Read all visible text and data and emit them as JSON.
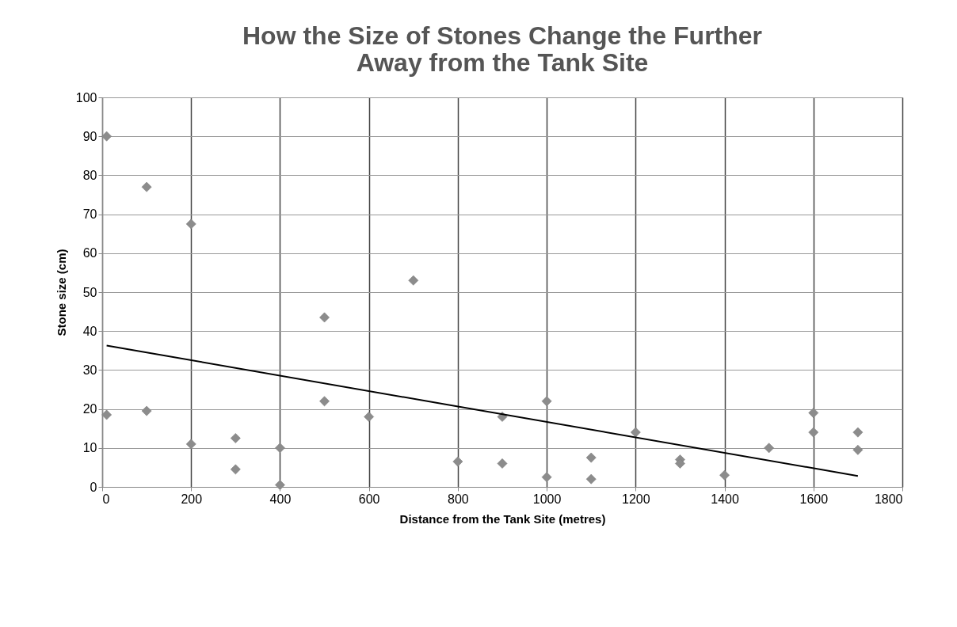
{
  "chart_data": {
    "type": "scatter",
    "title": "How the Size of Stones Change the Further Away from the Tank Site",
    "xlabel": "Distance from the Tank Site (metres)",
    "ylabel": "Stone size (cm)",
    "xlim": [
      0,
      1800
    ],
    "xticks": [
      0,
      200,
      400,
      600,
      800,
      1000,
      1200,
      1400,
      1600,
      1800
    ],
    "ylim": [
      0,
      100
    ],
    "yticks": [
      0,
      10,
      20,
      30,
      40,
      50,
      60,
      70,
      80,
      90,
      100
    ],
    "grid": true,
    "marker": "diamond",
    "series": [
      {
        "color": "#8c8c8c",
        "x": [
          10,
          10,
          100,
          100,
          200,
          200,
          300,
          300,
          400,
          400,
          500,
          500,
          600,
          700,
          800,
          900,
          900,
          1000,
          1000,
          1100,
          1100,
          1200,
          1300,
          1300,
          1400,
          1500,
          1600,
          1600,
          1700,
          1700
        ],
        "values": [
          90,
          18.5,
          77,
          19.5,
          67.5,
          11,
          12.5,
          4.5,
          10,
          0.5,
          43.5,
          22,
          18,
          53,
          6.5,
          18,
          6,
          22,
          2.5,
          7.5,
          2,
          14,
          7,
          6,
          3,
          10,
          19,
          14,
          14,
          9.5
        ]
      },
      {
        "type": "line",
        "marker": "none",
        "color": "#000000",
        "x": [
          10,
          1700
        ],
        "values": [
          36.3,
          2.8
        ]
      }
    ]
  }
}
